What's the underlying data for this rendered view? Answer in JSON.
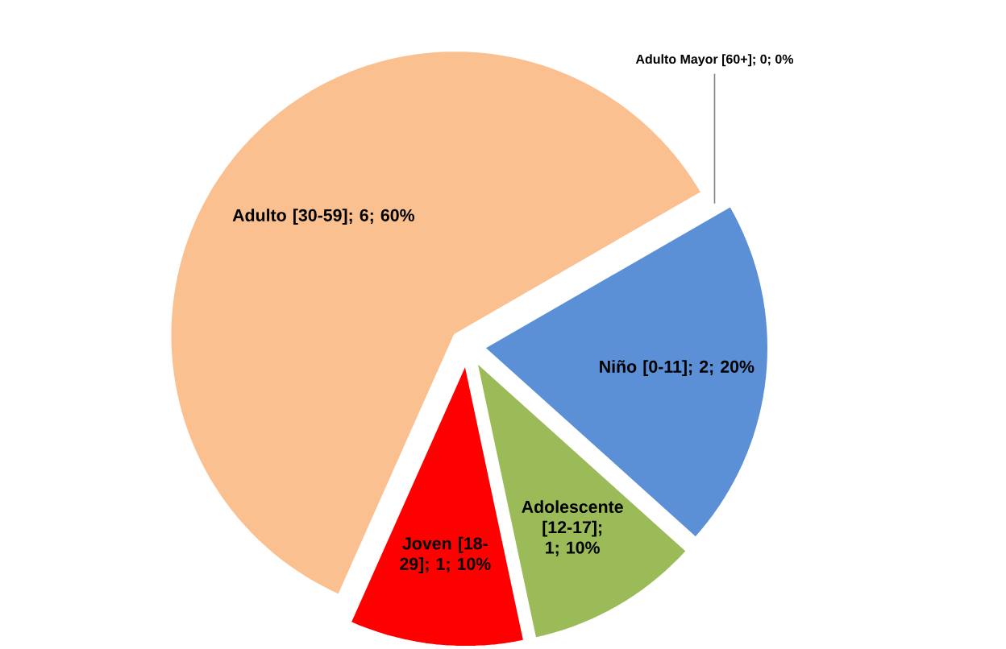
{
  "chart_data": {
    "type": "pie",
    "categories": [
      "Niño [0-11]",
      "Adolescente [12-17]",
      "Joven [18-29]",
      "Adulto [30-59]",
      "Adulto Mayor [60+]"
    ],
    "values": [
      2,
      1,
      1,
      6,
      0
    ],
    "value_labels": [
      "; 2; 20%",
      "; 1; 10%",
      "; 1; 10%",
      "; 6; 60%",
      "; 0; 0%"
    ],
    "colors": [
      "#5b8fd6",
      "#9bbb59",
      "#ff0000",
      "#fac090",
      "#4f81bd"
    ]
  }
}
